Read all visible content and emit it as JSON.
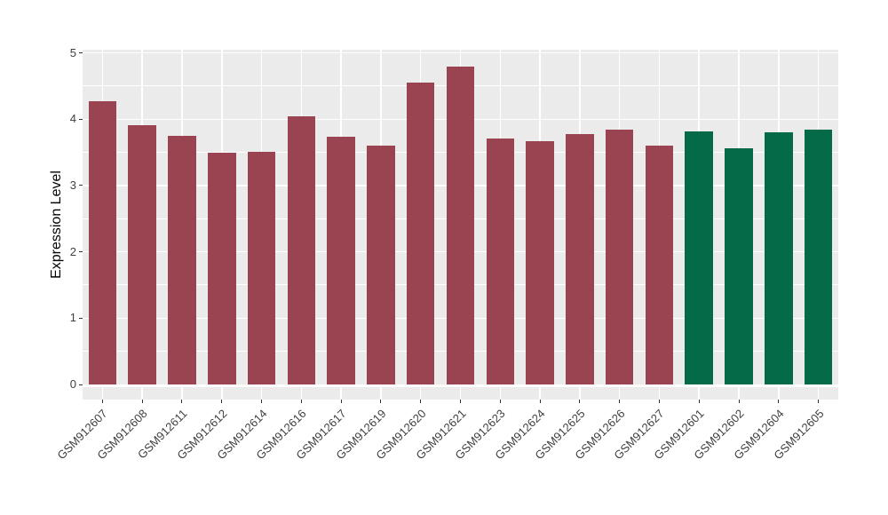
{
  "chart_style": {
    "background": "#FFFFFF",
    "panel_background": "#EBEBEB",
    "grid_color": "#FFFFFF",
    "tick_color": "#333333",
    "axis_text_color": "#404040",
    "axis_title_color": "#000000",
    "bar_color_main": "#9A4451",
    "bar_color_highlight": "#056A47"
  },
  "chart_data": {
    "type": "bar",
    "title": "",
    "xlabel": "",
    "ylabel": "Expression Level",
    "ylim": [
      0,
      5
    ],
    "yticks": [
      0,
      1,
      2,
      3,
      4,
      5
    ],
    "yticks_minor": [
      0.5,
      1.5,
      2.5,
      3.5,
      4.5
    ],
    "grid": true,
    "legend": "none",
    "categories": [
      "GSM912607",
      "GSM912608",
      "GSM912611",
      "GSM912612",
      "GSM912614",
      "GSM912616",
      "GSM912617",
      "GSM912619",
      "GSM912620",
      "GSM912621",
      "GSM912623",
      "GSM912624",
      "GSM912625",
      "GSM912626",
      "GSM912627",
      "GSM912601",
      "GSM912602",
      "GSM912604",
      "GSM912605"
    ],
    "values": [
      4.27,
      3.91,
      3.75,
      3.49,
      3.51,
      4.04,
      3.74,
      3.6,
      4.55,
      4.8,
      3.71,
      3.67,
      3.78,
      3.85,
      3.6,
      3.82,
      3.56,
      3.8,
      3.84
    ],
    "bars": [
      {
        "label": "GSM912607",
        "value": 4.27,
        "color": "#9A4451"
      },
      {
        "label": "GSM912608",
        "value": 3.91,
        "color": "#9A4451"
      },
      {
        "label": "GSM912611",
        "value": 3.75,
        "color": "#9A4451"
      },
      {
        "label": "GSM912612",
        "value": 3.49,
        "color": "#9A4451"
      },
      {
        "label": "GSM912614",
        "value": 3.51,
        "color": "#9A4451"
      },
      {
        "label": "GSM912616",
        "value": 4.04,
        "color": "#9A4451"
      },
      {
        "label": "GSM912617",
        "value": 3.74,
        "color": "#9A4451"
      },
      {
        "label": "GSM912619",
        "value": 3.6,
        "color": "#9A4451"
      },
      {
        "label": "GSM912620",
        "value": 4.55,
        "color": "#9A4451"
      },
      {
        "label": "GSM912621",
        "value": 4.8,
        "color": "#9A4451"
      },
      {
        "label": "GSM912623",
        "value": 3.71,
        "color": "#9A4451"
      },
      {
        "label": "GSM912624",
        "value": 3.67,
        "color": "#9A4451"
      },
      {
        "label": "GSM912625",
        "value": 3.78,
        "color": "#9A4451"
      },
      {
        "label": "GSM912626",
        "value": 3.85,
        "color": "#9A4451"
      },
      {
        "label": "GSM912627",
        "value": 3.6,
        "color": "#9A4451"
      },
      {
        "label": "GSM912601",
        "value": 3.82,
        "color": "#056A47"
      },
      {
        "label": "GSM912602",
        "value": 3.56,
        "color": "#056A47"
      },
      {
        "label": "GSM912604",
        "value": 3.8,
        "color": "#056A47"
      },
      {
        "label": "GSM912605",
        "value": 3.84,
        "color": "#056A47"
      }
    ]
  }
}
